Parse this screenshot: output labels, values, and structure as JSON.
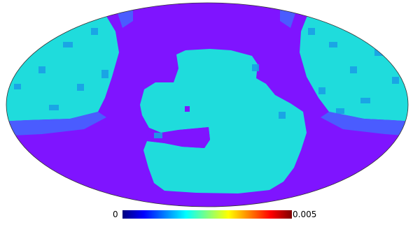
{
  "map": {
    "projection": "mollweide",
    "colormap": "jet",
    "background_color": "#7f14ff",
    "feature_color": "#1fdcdc",
    "edge_color": "#1a9fe6",
    "outline_color": "#333333"
  },
  "colorbar": {
    "min_label": "0",
    "max_label": "0.005",
    "orientation": "horizontal"
  }
}
